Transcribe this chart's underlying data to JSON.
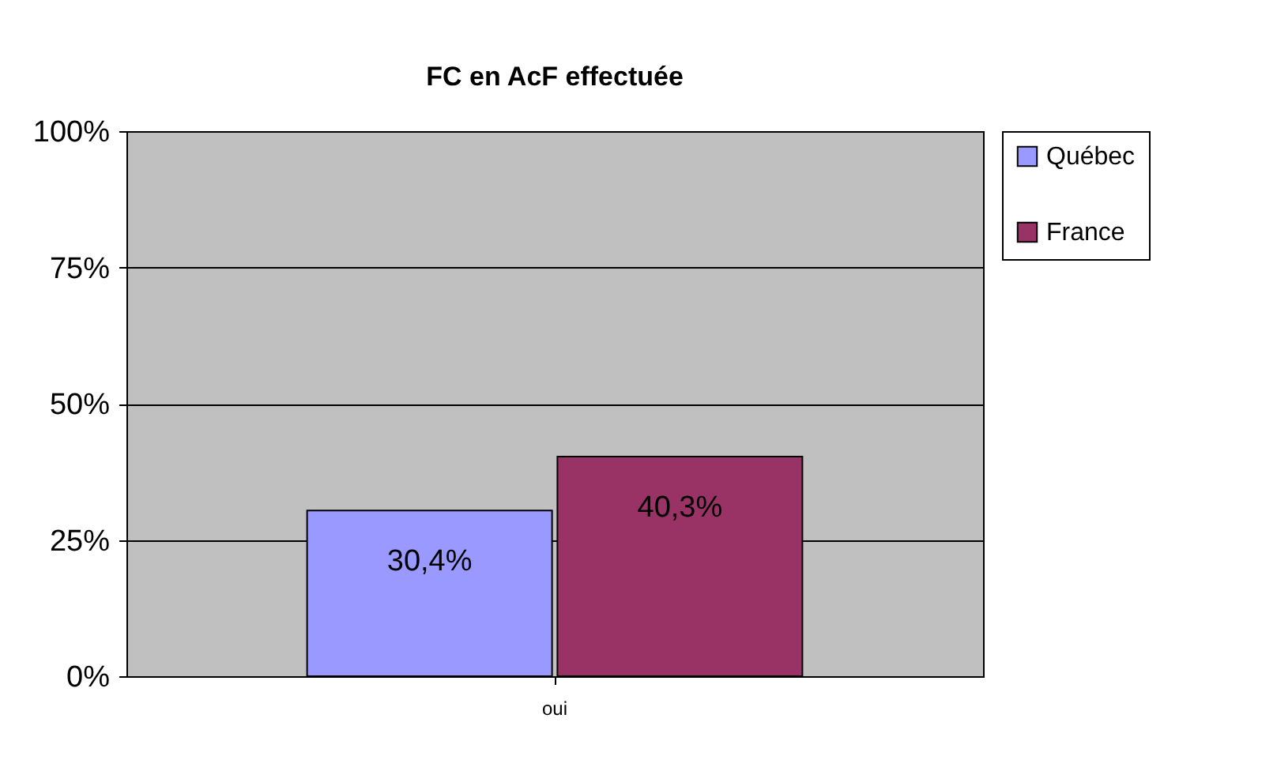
{
  "chart_data": {
    "type": "bar",
    "title": "FC en AcF effectuée",
    "categories": [
      "oui"
    ],
    "series": [
      {
        "name": "Québec",
        "color": "#9999ff",
        "values": [
          30.4
        ],
        "value_labels": [
          "30,4%"
        ]
      },
      {
        "name": "France",
        "color": "#993366",
        "values": [
          40.3
        ],
        "value_labels": [
          "40,3%"
        ]
      }
    ],
    "ylim": [
      0,
      100
    ],
    "yticks": [
      {
        "value": 0,
        "label": "0%"
      },
      {
        "value": 25,
        "label": "25%"
      },
      {
        "value": 50,
        "label": "50%"
      },
      {
        "value": 75,
        "label": "75%"
      },
      {
        "value": 100,
        "label": "100%"
      }
    ],
    "grid": "y",
    "legend": "right"
  }
}
